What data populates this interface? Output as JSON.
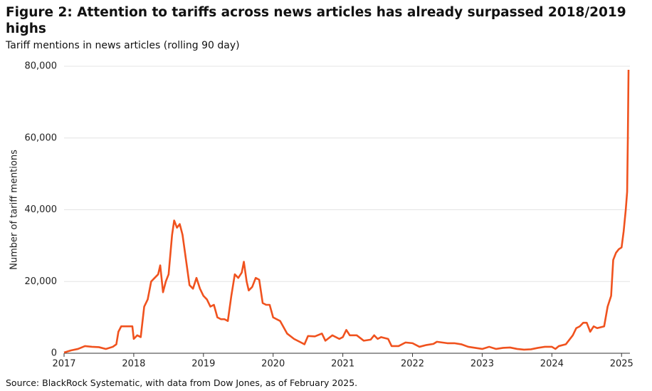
{
  "chart_data": {
    "type": "line",
    "title": "Figure 2: Attention to tariffs across news articles has already surpassed 2018/2019 highs",
    "subtitle": "Tariff mentions in news articles (rolling 90 day)",
    "y_label": "Number of tariff mentions",
    "source": "Source: BlackRock Systematic, with data from Dow Jones, as of February 2025.",
    "color": "#f0521e",
    "x": [
      2017.0,
      2017.1,
      2017.2,
      2017.3,
      2017.4,
      2017.5,
      2017.6,
      2017.7,
      2017.75,
      2017.78,
      2017.82,
      2017.9,
      2017.98,
      2018.0,
      2018.05,
      2018.1,
      2018.15,
      2018.2,
      2018.25,
      2018.3,
      2018.35,
      2018.38,
      2018.42,
      2018.46,
      2018.5,
      2018.55,
      2018.58,
      2018.62,
      2018.66,
      2018.7,
      2018.75,
      2018.8,
      2018.85,
      2018.9,
      2018.95,
      2019.0,
      2019.05,
      2019.1,
      2019.15,
      2019.2,
      2019.25,
      2019.3,
      2019.35,
      2019.4,
      2019.45,
      2019.5,
      2019.55,
      2019.58,
      2019.62,
      2019.65,
      2019.7,
      2019.75,
      2019.8,
      2019.85,
      2019.9,
      2019.95,
      2020.0,
      2020.1,
      2020.2,
      2020.3,
      2020.4,
      2020.45,
      2020.5,
      2020.6,
      2020.7,
      2020.75,
      2020.85,
      2020.95,
      2021.0,
      2021.05,
      2021.1,
      2021.2,
      2021.3,
      2021.4,
      2021.45,
      2021.5,
      2021.55,
      2021.65,
      2021.7,
      2021.8,
      2021.9,
      2022.0,
      2022.1,
      2022.2,
      2022.3,
      2022.35,
      2022.5,
      2022.6,
      2022.7,
      2022.8,
      2022.9,
      2023.0,
      2023.1,
      2023.2,
      2023.3,
      2023.4,
      2023.5,
      2023.6,
      2023.7,
      2023.8,
      2023.9,
      2024.0,
      2024.05,
      2024.1,
      2024.2,
      2024.3,
      2024.35,
      2024.4,
      2024.45,
      2024.5,
      2024.55,
      2024.6,
      2024.65,
      2024.75,
      2024.8,
      2024.85,
      2024.88,
      2024.92,
      2024.96,
      2025.0,
      2025.03,
      2025.06,
      2025.08,
      2025.09,
      2025.1
    ],
    "values": [
      200,
      800,
      1200,
      2000,
      1800,
      1700,
      1200,
      1800,
      2500,
      6000,
      7500,
      7500,
      7500,
      4000,
      5000,
      4500,
      13000,
      15000,
      20000,
      21000,
      22000,
      24500,
      17000,
      20000,
      22000,
      33000,
      37000,
      35000,
      36000,
      33000,
      26000,
      19000,
      18000,
      21000,
      18000,
      16000,
      15000,
      13000,
      13500,
      10000,
      9500,
      9500,
      9000,
      16000,
      22000,
      21000,
      22500,
      25500,
      20000,
      17500,
      18500,
      21000,
      20500,
      14000,
      13500,
      13500,
      10000,
      9000,
      5500,
      4000,
      3000,
      2500,
      4800,
      4700,
      5500,
      3500,
      5000,
      4000,
      4500,
      6500,
      5000,
      5000,
      3500,
      3800,
      5000,
      4000,
      4500,
      4000,
      2000,
      2000,
      3000,
      2800,
      1800,
      2300,
      2600,
      3200,
      2800,
      2800,
      2500,
      1800,
      1500,
      1200,
      1800,
      1200,
      1500,
      1600,
      1200,
      1000,
      1100,
      1500,
      1800,
      1800,
      1200,
      2000,
      2500,
      5000,
      7000,
      7500,
      8500,
      8500,
      6000,
      7500,
      7000,
      7500,
      13000,
      16000,
      26000,
      28000,
      29000,
      29500,
      34000,
      40000,
      45000,
      60000,
      79000
    ],
    "xlim": [
      2017,
      2025.12
    ],
    "xticks": [
      2017,
      2018,
      2019,
      2020,
      2021,
      2022,
      2023,
      2024,
      2025
    ],
    "ylim": [
      0,
      80000
    ],
    "yticks": [
      0,
      {
        "value": 20000,
        "label": "20,000"
      },
      {
        "value": 40000,
        "label": "40,000"
      },
      {
        "value": 60000,
        "label": "60,000"
      },
      {
        "value": 80000,
        "label": "80,000"
      }
    ],
    "grid": true
  }
}
